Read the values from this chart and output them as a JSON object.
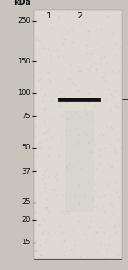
{
  "bg_color": "#c8c4bc",
  "gel_bg_color": "#dedad2",
  "ladder_labels": [
    "250",
    "150",
    "100",
    "75",
    "50",
    "37",
    "25",
    "20",
    "15"
  ],
  "ladder_kda": [
    250,
    150,
    100,
    75,
    50,
    37,
    25,
    20,
    15
  ],
  "kda_label": "kDa",
  "lane_labels": [
    "1",
    "2"
  ],
  "band_lane2_kda": 92,
  "band_color": "#111111",
  "arrow_kda": 92,
  "fig_width": 1.6,
  "fig_height": 3.36,
  "dpi": 100,
  "font_size_kda": 7.0,
  "font_size_lane": 8.0,
  "font_size_marker": 6.0
}
